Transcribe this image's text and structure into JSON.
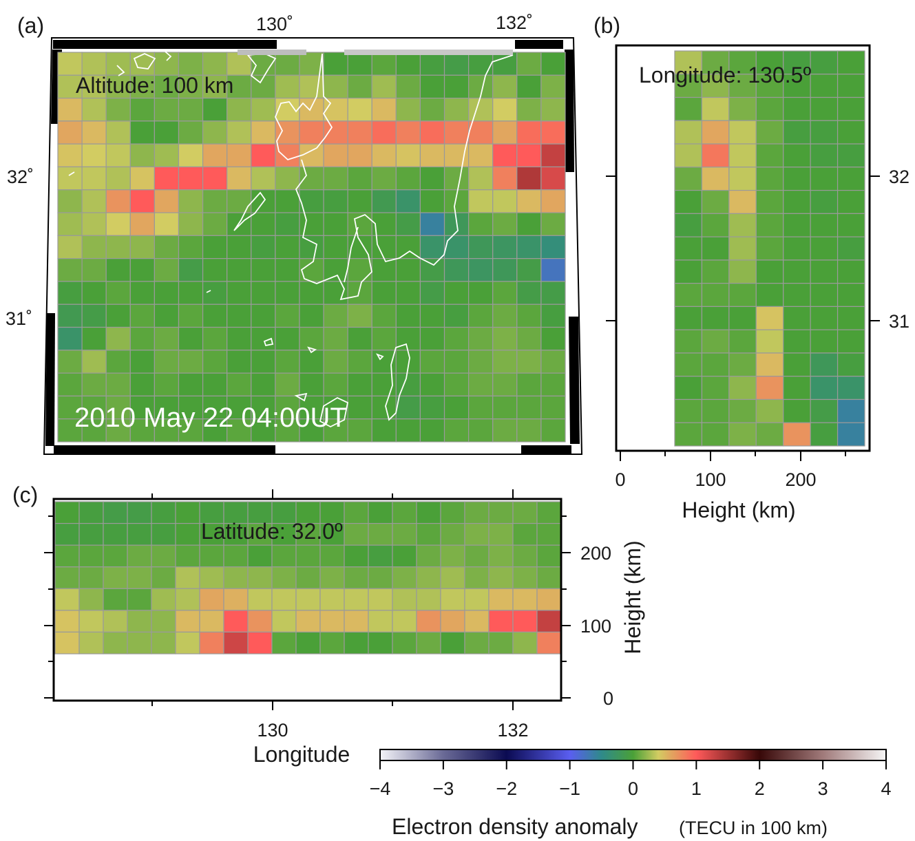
{
  "panels": {
    "a": {
      "label": "(a)",
      "annotation": "Altitude: 100 km",
      "date": "2010 May 22 04:00UT",
      "top_ticks": [
        "130˚",
        "132˚"
      ],
      "left_ticks": [
        "32˚",
        "31˚"
      ]
    },
    "b": {
      "label": "(b)",
      "annotation": "Longitude: 130.5º",
      "right_ticks": [
        "32",
        "31"
      ],
      "x_ticks": [
        "0",
        "100",
        "200"
      ],
      "xlabel": "Height (km)"
    },
    "c": {
      "label": "(c)",
      "annotation": "Latitude: 32.0º",
      "x_ticks": [
        "130",
        "132"
      ],
      "xlabel": "Longitude",
      "right_ticks": [
        "200",
        "100",
        "0"
      ],
      "ylabel": "Height (km)"
    }
  },
  "colorbar": {
    "ticks": [
      "−4",
      "−3",
      "−2",
      "−1",
      "0",
      "1",
      "2",
      "3",
      "4"
    ],
    "label_main": "Electron density anomaly",
    "label_unit": "(TECU in 100 km)",
    "stops": [
      {
        "v": -4,
        "c": "#f4f4f8"
      },
      {
        "v": -3,
        "c": "#6a6a96"
      },
      {
        "v": -2,
        "c": "#0b0b52"
      },
      {
        "v": -1,
        "c": "#5a5ef0"
      },
      {
        "v": -0.5,
        "c": "#2f8a8a"
      },
      {
        "v": 0,
        "c": "#4aa038"
      },
      {
        "v": 0.4,
        "c": "#d2cc62"
      },
      {
        "v": 1,
        "c": "#ff5a5a"
      },
      {
        "v": 2,
        "c": "#380808"
      },
      {
        "v": 3,
        "c": "#a07a7a"
      },
      {
        "v": 4,
        "c": "#f6f6f6"
      }
    ]
  },
  "chart_data": [
    {
      "type": "heatmap",
      "panel": "a",
      "title": "Altitude: 100 km",
      "x_range": [
        128.6,
        132.4
      ],
      "y_range": [
        30.2,
        32.9
      ],
      "values": [
        [
          0.35,
          0.3,
          0.25,
          0.25,
          0.2,
          0.15,
          0.2,
          0.3,
          0.1,
          0.1,
          0.15,
          0.0,
          0.0,
          0.05,
          0.0,
          -0.05,
          -0.1,
          -0.05,
          -0.05,
          0.1,
          0.0
        ],
        [
          0.3,
          0.3,
          0.2,
          0.15,
          0.1,
          0.15,
          0.2,
          0.1,
          0.1,
          0.25,
          0.3,
          0.2,
          0.1,
          0.25,
          0.1,
          0.0,
          0.0,
          0.1,
          0.2,
          0.0,
          0.15
        ],
        [
          0.5,
          0.3,
          0.15,
          0.05,
          0.1,
          0.1,
          0.0,
          0.2,
          0.25,
          0.4,
          0.5,
          0.45,
          0.4,
          0.5,
          0.2,
          0.1,
          0.2,
          0.3,
          0.4,
          0.15,
          0.2
        ],
        [
          0.6,
          0.5,
          0.3,
          0.0,
          0.0,
          0.1,
          0.2,
          0.3,
          0.5,
          0.7,
          0.8,
          0.8,
          0.8,
          0.9,
          0.8,
          0.9,
          0.8,
          0.8,
          0.6,
          0.9,
          0.9
        ],
        [
          0.45,
          0.4,
          0.35,
          0.2,
          0.25,
          0.4,
          0.6,
          0.6,
          1.0,
          0.8,
          0.5,
          0.6,
          0.6,
          0.5,
          0.45,
          0.5,
          0.5,
          0.5,
          1.0,
          1.0,
          1.3
        ],
        [
          0.35,
          0.35,
          0.3,
          0.45,
          1.0,
          1.0,
          1.0,
          0.5,
          0.3,
          0.2,
          0.1,
          0.1,
          0.05,
          0.1,
          0.05,
          0.0,
          0.1,
          0.3,
          0.8,
          1.4,
          1.2
        ],
        [
          0.2,
          0.3,
          0.7,
          1.0,
          0.6,
          0.2,
          0.1,
          0.1,
          0.0,
          0.0,
          -0.05,
          -0.05,
          0.0,
          -0.15,
          -0.3,
          0.0,
          0.05,
          0.35,
          0.35,
          0.5,
          0.6
        ],
        [
          0.25,
          0.3,
          0.4,
          0.6,
          0.4,
          0.2,
          0.1,
          0.0,
          0.0,
          -0.05,
          0.0,
          0.0,
          0.05,
          0.0,
          -0.1,
          -0.6,
          -0.2,
          0.05,
          0.1,
          0.0,
          0.1
        ],
        [
          0.3,
          0.2,
          0.2,
          0.2,
          0.1,
          0.05,
          0.0,
          0.0,
          -0.05,
          0.0,
          -0.05,
          0.0,
          0.0,
          0.0,
          0.0,
          -0.3,
          -0.3,
          -0.2,
          -0.25,
          -0.3,
          -0.4
        ],
        [
          0.1,
          0.1,
          0.0,
          0.0,
          0.1,
          -0.1,
          0.0,
          0.0,
          0.0,
          0.0,
          0.05,
          0.0,
          0.05,
          0.0,
          0.0,
          -0.1,
          -0.2,
          -0.25,
          -0.2,
          -0.1,
          -0.75
        ],
        [
          -0.05,
          0.0,
          0.05,
          0.0,
          0.0,
          0.0,
          -0.05,
          0.0,
          0.0,
          0.0,
          0.0,
          0.0,
          0.05,
          0.0,
          0.0,
          -0.1,
          0.0,
          0.0,
          0.05,
          -0.1,
          -0.1
        ],
        [
          -0.15,
          -0.1,
          0.0,
          0.05,
          0.0,
          0.05,
          0.0,
          0.0,
          0.0,
          0.05,
          0.0,
          0.1,
          0.15,
          0.05,
          0.0,
          0.0,
          -0.05,
          0.05,
          0.1,
          0.05,
          -0.05
        ],
        [
          -0.3,
          0.0,
          0.2,
          0.05,
          0.1,
          0.0,
          0.05,
          0.0,
          0.0,
          0.0,
          0.05,
          0.1,
          0.0,
          0.05,
          0.0,
          0.0,
          0.05,
          0.1,
          0.15,
          0.1,
          0.0
        ],
        [
          0.1,
          0.25,
          0.05,
          0.0,
          0.1,
          0.1,
          0.05,
          0.0,
          0.0,
          0.05,
          0.0,
          0.1,
          0.05,
          0.0,
          0.0,
          0.05,
          0.05,
          0.1,
          0.15,
          0.15,
          0.1
        ],
        [
          0.05,
          0.1,
          0.1,
          0.0,
          0.05,
          0.0,
          0.0,
          0.05,
          0.0,
          0.1,
          0.0,
          0.05,
          0.0,
          0.0,
          -0.05,
          0.0,
          0.05,
          0.1,
          0.1,
          0.05,
          0.05
        ],
        [
          0.05,
          0.05,
          0.1,
          0.0,
          0.0,
          0.0,
          0.0,
          0.0,
          0.0,
          0.05,
          0.0,
          0.0,
          0.0,
          0.0,
          -0.1,
          -0.05,
          0.0,
          0.05,
          0.05,
          0.05,
          0.05
        ],
        [
          0.05,
          0.05,
          0.1,
          0.05,
          0.05,
          0.05,
          0.0,
          0.05,
          0.0,
          0.05,
          0.0,
          0.05,
          0.05,
          0.0,
          0.0,
          0.0,
          0.05,
          0.05,
          0.1,
          0.1,
          0.05
        ]
      ]
    },
    {
      "type": "heatmap",
      "panel": "b",
      "title": "Longitude: 130.5º",
      "xlabel": "Height (km)",
      "x_range": [
        0,
        270
      ],
      "x_data": [
        60,
        270
      ],
      "y_range": [
        30.2,
        32.9
      ],
      "values": [
        [
          0.3,
          0.1,
          0.05,
          0.0,
          -0.05,
          -0.05,
          0.0
        ],
        [
          0.1,
          0.2,
          0.1,
          0.05,
          0.0,
          0.0,
          0.0
        ],
        [
          0.05,
          0.35,
          0.15,
          0.05,
          0.0,
          0.0,
          0.0
        ],
        [
          0.3,
          0.6,
          0.35,
          0.1,
          -0.05,
          -0.05,
          0.0
        ],
        [
          0.3,
          0.85,
          0.35,
          0.05,
          0.0,
          -0.05,
          -0.05
        ],
        [
          0.1,
          0.5,
          0.35,
          0.05,
          0.0,
          0.0,
          0.0
        ],
        [
          0.0,
          0.1,
          0.5,
          0.05,
          0.0,
          -0.05,
          0.0
        ],
        [
          -0.05,
          0.05,
          0.25,
          0.05,
          0.0,
          0.0,
          0.0
        ],
        [
          0.0,
          0.0,
          0.25,
          0.05,
          0.0,
          0.0,
          -0.05
        ],
        [
          0.0,
          0.05,
          0.2,
          0.0,
          0.0,
          0.0,
          0.0
        ],
        [
          0.05,
          0.05,
          0.05,
          0.0,
          0.0,
          0.0,
          0.0
        ],
        [
          0.0,
          0.0,
          0.0,
          0.45,
          0.0,
          0.0,
          0.0
        ],
        [
          0.05,
          0.1,
          0.05,
          0.35,
          0.0,
          0.0,
          0.0
        ],
        [
          0.05,
          0.05,
          0.1,
          0.5,
          0.0,
          -0.2,
          -0.05
        ],
        [
          0.0,
          0.05,
          0.2,
          0.7,
          0.0,
          -0.3,
          -0.3
        ],
        [
          0.05,
          0.05,
          0.1,
          0.2,
          0.0,
          -0.1,
          -0.6
        ],
        [
          0.05,
          0.05,
          0.15,
          0.1,
          0.7,
          -0.05,
          -0.6
        ]
      ]
    },
    {
      "type": "heatmap",
      "panel": "c",
      "title": "Latitude: 32.0º",
      "xlabel": "Longitude",
      "ylabel": "Height (km)",
      "x_range": [
        128.6,
        132.4
      ],
      "y_range": [
        0,
        270
      ],
      "y_data": [
        60,
        270
      ],
      "values": [
        [
          0.0,
          -0.05,
          -0.1,
          -0.1,
          -0.05,
          0.0,
          -0.05,
          -0.05,
          -0.05,
          -0.05,
          0.0,
          0.0,
          0.05,
          0.0,
          0.05,
          0.0,
          0.05,
          0.1,
          0.1,
          0.1,
          0.05
        ],
        [
          -0.05,
          -0.05,
          -0.05,
          -0.05,
          -0.05,
          0.0,
          0.0,
          0.0,
          0.05,
          0.0,
          0.05,
          0.0,
          0.1,
          0.1,
          0.1,
          0.05,
          0.1,
          0.15,
          0.15,
          0.05,
          0.05
        ],
        [
          0.05,
          0.05,
          0.05,
          0.1,
          0.1,
          0.05,
          0.05,
          0.05,
          0.0,
          0.05,
          0.05,
          0.05,
          0.0,
          -0.05,
          0.0,
          0.1,
          0.15,
          0.1,
          0.15,
          0.1,
          0.05
        ],
        [
          0.1,
          0.1,
          0.15,
          0.15,
          0.1,
          0.3,
          0.25,
          0.2,
          0.2,
          0.15,
          0.1,
          0.15,
          0.1,
          0.1,
          0.15,
          0.2,
          0.25,
          0.15,
          0.2,
          0.15,
          0.1
        ],
        [
          0.35,
          0.2,
          0.05,
          0.05,
          0.25,
          0.3,
          0.6,
          0.55,
          0.35,
          0.35,
          0.35,
          0.35,
          0.35,
          0.35,
          0.3,
          0.3,
          0.35,
          0.35,
          0.5,
          0.5,
          0.55
        ],
        [
          0.45,
          0.35,
          0.3,
          0.2,
          0.2,
          0.5,
          0.5,
          1.0,
          0.7,
          0.35,
          0.5,
          0.5,
          0.5,
          0.35,
          0.35,
          0.7,
          0.6,
          0.5,
          1.0,
          1.0,
          1.3
        ],
        [
          0.45,
          0.3,
          0.2,
          0.2,
          0.2,
          0.35,
          0.8,
          1.25,
          1.0,
          0.05,
          0.0,
          0.05,
          0.0,
          0.0,
          0.05,
          0.1,
          0.0,
          0.1,
          0.1,
          0.2,
          0.8
        ]
      ]
    }
  ]
}
